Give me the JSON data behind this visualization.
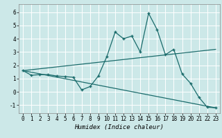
{
  "title": "",
  "xlabel": "Humidex (Indice chaleur)",
  "bg_color": "#cce8e8",
  "line_color": "#1a6b6b",
  "grid_color": "#ffffff",
  "xlim": [
    -0.5,
    23.5
  ],
  "ylim": [
    -1.6,
    6.6
  ],
  "xticks": [
    0,
    1,
    2,
    3,
    4,
    5,
    6,
    7,
    8,
    9,
    10,
    11,
    12,
    13,
    14,
    15,
    16,
    17,
    18,
    19,
    20,
    21,
    22,
    23
  ],
  "yticks": [
    -1,
    0,
    1,
    2,
    3,
    4,
    5,
    6
  ],
  "main_x": [
    0,
    1,
    2,
    3,
    4,
    5,
    6,
    7,
    8,
    9,
    10,
    11,
    12,
    13,
    14,
    15,
    16,
    17,
    18,
    19,
    20,
    21,
    22,
    23
  ],
  "main_y": [
    1.6,
    1.25,
    1.3,
    1.3,
    1.2,
    1.15,
    1.1,
    0.15,
    0.4,
    1.2,
    2.65,
    4.5,
    4.0,
    4.2,
    3.0,
    5.9,
    4.7,
    2.8,
    3.2,
    1.35,
    0.65,
    -0.4,
    -1.15,
    -1.2
  ],
  "upper_line_x": [
    0,
    23
  ],
  "upper_line_y": [
    1.6,
    3.2
  ],
  "lower_line_x": [
    0,
    23
  ],
  "lower_line_y": [
    1.6,
    -1.2
  ],
  "tick_fontsize": 5.5,
  "xlabel_fontsize": 6.5
}
